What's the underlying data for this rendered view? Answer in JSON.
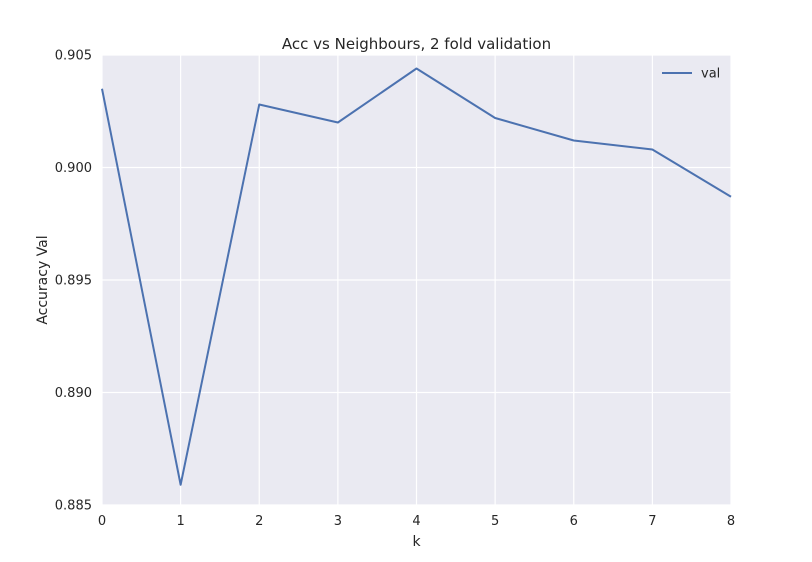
{
  "chart_data": {
    "type": "line",
    "title": "Acc vs Neighbours, 2 fold validation",
    "xlabel": "k",
    "ylabel": "Accuracy Val",
    "xlim": [
      0,
      8
    ],
    "ylim": [
      0.885,
      0.905
    ],
    "xticks": [
      "0",
      "1",
      "2",
      "3",
      "4",
      "5",
      "6",
      "7",
      "8"
    ],
    "yticks": [
      "0.885",
      "0.890",
      "0.895",
      "0.900",
      "0.905"
    ],
    "grid": true,
    "legend_position": "top-right",
    "series": [
      {
        "name": "val",
        "color": "#4c72b0",
        "x": [
          0,
          1,
          2,
          3,
          4,
          5,
          6,
          7,
          8
        ],
        "values": [
          0.9035,
          0.8859,
          0.9028,
          0.902,
          0.9044,
          0.9022,
          0.9012,
          0.9008,
          0.8987
        ]
      }
    ]
  }
}
